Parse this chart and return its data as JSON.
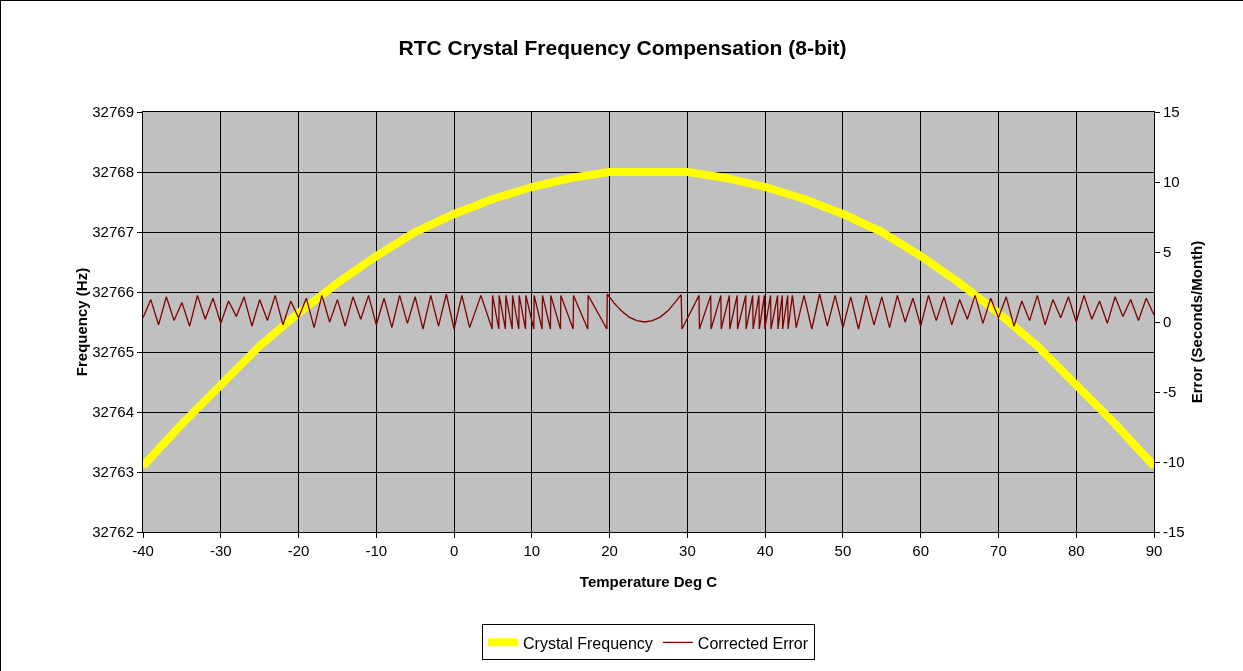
{
  "chart_data": {
    "type": "line",
    "title": "RTC Crystal Frequency Compensation (8-bit)",
    "xlabel": "Temperature Deg C",
    "ylabel": "Frequency (Hz)",
    "y2label": "Error (Seconds/Month)",
    "xlim": [
      -40,
      90
    ],
    "xticks": [
      -40,
      -30,
      -20,
      -10,
      0,
      10,
      20,
      30,
      40,
      50,
      60,
      70,
      80,
      90
    ],
    "ylim": [
      32762,
      32769
    ],
    "yticks": [
      32762,
      32763,
      32764,
      32765,
      32766,
      32767,
      32768,
      32769
    ],
    "y2lim": [
      -15,
      15
    ],
    "y2ticks": [
      -15,
      -10,
      -5,
      0,
      5,
      10,
      15
    ],
    "grid": true,
    "legend": "bottom",
    "line_style": "solid",
    "series": [
      {
        "name": "Crystal Frequency",
        "color": "#ffff00",
        "marker": "triangle",
        "x": [
          -40,
          -35,
          -30,
          -25,
          -20,
          -15,
          -10,
          -5,
          0,
          5,
          10,
          15,
          20,
          25,
          30,
          35,
          40,
          45,
          50,
          55,
          60,
          65,
          70,
          75,
          80,
          85,
          90
        ],
        "values": [
          32763.1,
          32763.8,
          32764.45,
          32765.1,
          32765.65,
          32766.15,
          32766.6,
          32767.0,
          32767.3,
          32767.55,
          32767.75,
          32767.9,
          32768.0,
          32768.0,
          32768.0,
          32767.9,
          32767.75,
          32767.55,
          32767.3,
          32767.0,
          32766.6,
          32766.15,
          32765.65,
          32765.1,
          32764.45,
          32763.8,
          32763.1
        ]
      },
      {
        "name": "Corrected Error",
        "color": "#800000",
        "marker": "none",
        "axis": "y2",
        "x": [
          -40,
          -39,
          -38,
          -37,
          -36,
          -35,
          -34,
          -33,
          -32,
          -31,
          -30,
          -29,
          -28,
          -27,
          -26,
          -25,
          -24,
          -23,
          -22,
          -21,
          -20,
          -19,
          -18,
          -17,
          -16,
          -15,
          -14,
          -13,
          -12,
          -11,
          -10,
          -9,
          -8,
          -7,
          -6,
          -5,
          -4,
          -3,
          -2,
          -1,
          0,
          1,
          2,
          3.45,
          4.9,
          4.95,
          5.75,
          5.8,
          6.6,
          6.66,
          7.47,
          7.52,
          8.32,
          8.37,
          9.18,
          9.23,
          10.25,
          10.3,
          11.32,
          11.37,
          12.39,
          12.44,
          13.68,
          13.73,
          15.31,
          15.36,
          17.19,
          17.24,
          19.65,
          19.7,
          20.5,
          21.5,
          22.5,
          23.5,
          24.5,
          25.5,
          26.5,
          27.5,
          28.5,
          29.2,
          29.3,
          31.5,
          31.55,
          33.0,
          33.05,
          34.3,
          34.35,
          35.4,
          35.45,
          36.4,
          36.45,
          37.5,
          37.55,
          38.4,
          38.45,
          39.2,
          39.25,
          39.9,
          39.95,
          40.7,
          40.75,
          41.6,
          41.65,
          42.2,
          42.25,
          42.9,
          42.95,
          43.5,
          44,
          45,
          46,
          47,
          48,
          49,
          50,
          51,
          52,
          53,
          54,
          55,
          56,
          57,
          58,
          59,
          60,
          61,
          62,
          63,
          64,
          65,
          66,
          67,
          68,
          69,
          70,
          71,
          72,
          73,
          74,
          75,
          76,
          77,
          78,
          79,
          80,
          81,
          82,
          83,
          84,
          85,
          86,
          87,
          88,
          89,
          90
        ],
        "values": [
          0.3,
          1.6,
          -0.2,
          1.8,
          0.1,
          1.4,
          -0.3,
          1.9,
          0.2,
          1.7,
          -0.1,
          1.5,
          0.4,
          1.8,
          -0.3,
          1.6,
          0.1,
          1.9,
          -0.2,
          1.5,
          0.3,
          1.7,
          -0.4,
          1.9,
          0.0,
          1.6,
          -0.3,
          1.8,
          0.2,
          1.9,
          -0.2,
          1.7,
          -0.4,
          1.9,
          -0.1,
          1.8,
          -0.5,
          1.9,
          -0.3,
          2.0,
          -0.5,
          1.9,
          -0.4,
          1.9,
          -0.5,
          1.9,
          -0.5,
          1.9,
          -0.5,
          1.9,
          -0.5,
          1.9,
          -0.5,
          1.9,
          -0.5,
          1.9,
          -0.5,
          1.9,
          -0.5,
          1.9,
          -0.5,
          1.9,
          -0.5,
          1.9,
          -0.5,
          1.9,
          -0.5,
          1.9,
          -0.5,
          2.0,
          1.4,
          0.8,
          0.35,
          0.1,
          0.0,
          0.1,
          0.35,
          0.8,
          1.45,
          1.95,
          -0.5,
          1.9,
          -0.5,
          1.9,
          -0.5,
          1.9,
          -0.5,
          1.9,
          -0.5,
          1.9,
          -0.5,
          1.9,
          -0.5,
          1.9,
          -0.5,
          1.9,
          -0.5,
          1.9,
          -0.5,
          1.9,
          -0.5,
          1.9,
          -0.5,
          1.9,
          -0.5,
          1.9,
          -0.5,
          1.9,
          -0.4,
          1.9,
          -0.5,
          2.0,
          -0.3,
          1.9,
          -0.4,
          1.8,
          -0.5,
          1.9,
          -0.2,
          1.8,
          -0.4,
          1.9,
          0.0,
          1.7,
          -0.3,
          1.9,
          0.1,
          1.8,
          -0.2,
          1.6,
          0.2,
          1.9,
          -0.1,
          1.7,
          0.3,
          1.8,
          -0.3,
          1.5,
          0.1,
          1.9,
          -0.2,
          1.6,
          0.3,
          1.8,
          0.0,
          1.9,
          0.2,
          1.5,
          -0.1,
          1.8,
          0.4,
          1.6,
          0.1,
          1.7,
          0.5
        ]
      }
    ]
  }
}
